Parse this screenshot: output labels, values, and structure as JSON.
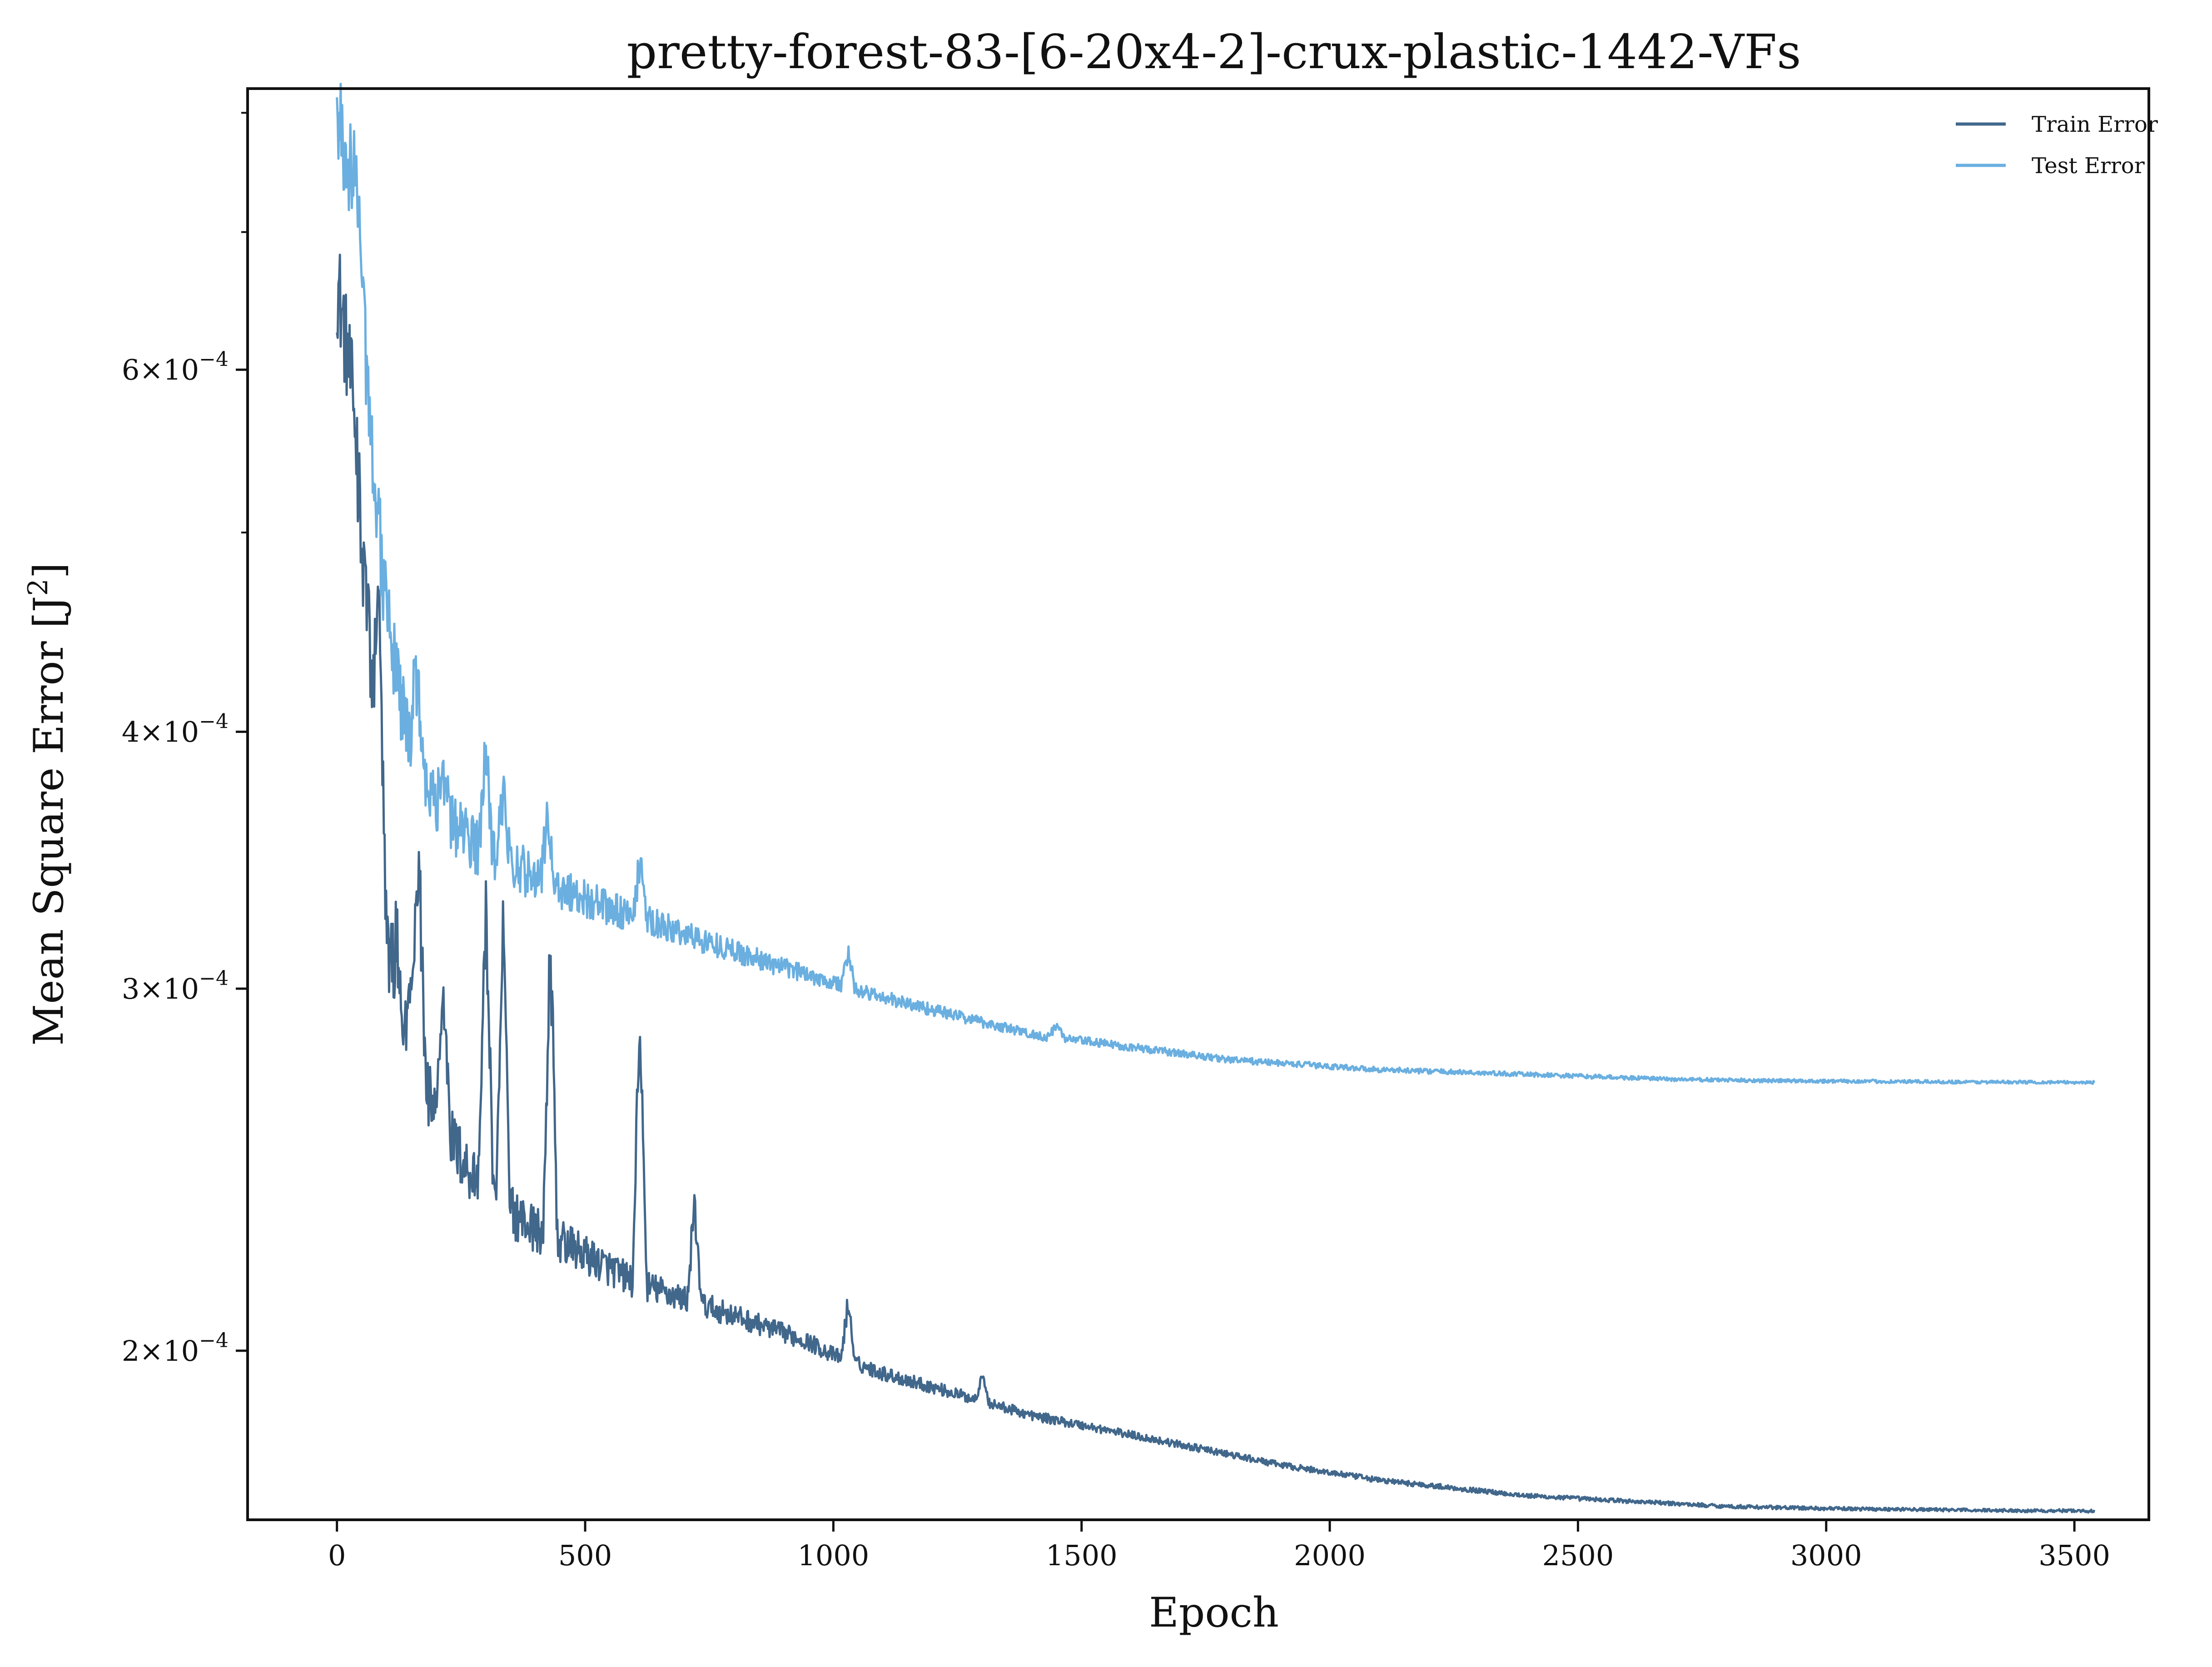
{
  "chart_data": {
    "type": "line",
    "title": "pretty-forest-83-[6-20x4-2]-crux-plastic-1442-VFs",
    "xlabel": "Epoch",
    "ylabel_base": "Mean Square Error [J",
    "ylabel_sup": "2",
    "ylabel_end": "]",
    "xlim": [
      -180,
      3650
    ],
    "ylim": [
      0.0001655,
      0.000822
    ],
    "yscale": "log",
    "grid": false,
    "legend_position": "top-right",
    "x_ticks": [
      {
        "value": 0,
        "label": "0"
      },
      {
        "value": 500,
        "label": "500"
      },
      {
        "value": 1000,
        "label": "1000"
      },
      {
        "value": 1500,
        "label": "1500"
      },
      {
        "value": 2000,
        "label": "2000"
      },
      {
        "value": 2500,
        "label": "2500"
      },
      {
        "value": 3000,
        "label": "3000"
      },
      {
        "value": 3500,
        "label": "3500"
      }
    ],
    "y_major_ticks": [
      {
        "value": 0.0002,
        "mantissa": "2",
        "exp": "−4"
      },
      {
        "value": 0.0003,
        "mantissa": "3",
        "exp": "−4"
      },
      {
        "value": 0.0004,
        "mantissa": "4",
        "exp": "−4"
      },
      {
        "value": 0.0006,
        "mantissa": "6",
        "exp": "−4"
      }
    ],
    "y_minor_ticks": [
      0.0005,
      0.0007,
      0.0008
    ],
    "series": [
      {
        "name": "Train Error",
        "color": "#41678b",
        "points": [
          [
            0,
            0.000665
          ],
          [
            10,
            0.00064
          ],
          [
            25,
            0.0006
          ],
          [
            40,
            0.00056
          ],
          [
            55,
            0.0005
          ],
          [
            70,
            0.00042
          ],
          [
            85,
            0.00036
          ],
          [
            100,
            0.00032
          ],
          [
            115,
            0.000295
          ],
          [
            125,
            0.000287
          ],
          [
            140,
            0.000282
          ],
          [
            155,
            0.000276
          ],
          [
            170,
            0.00027
          ],
          [
            185,
            0.000265
          ],
          [
            200,
            0.00026
          ],
          [
            220,
            0.000256
          ],
          [
            240,
            0.000251
          ],
          [
            260,
            0.000246
          ],
          [
            280,
            0.000243
          ],
          [
            300,
            0.00024
          ],
          [
            330,
            0.000236
          ],
          [
            360,
            0.000233
          ],
          [
            390,
            0.00023
          ],
          [
            420,
            0.000228
          ],
          [
            450,
            0.000226
          ],
          [
            480,
            0.000224
          ],
          [
            510,
            0.000222
          ],
          [
            540,
            0.00022
          ],
          [
            570,
            0.000218
          ],
          [
            600,
            0.000216
          ],
          [
            650,
            0.000214
          ],
          [
            700,
            0.000212
          ],
          [
            750,
            0.00021
          ],
          [
            800,
            0.000208
          ],
          [
            850,
            0.000206
          ],
          [
            900,
            0.000204
          ],
          [
            950,
            0.000202
          ],
          [
            1000,
            0.000199
          ],
          [
            1100,
            0.000195
          ],
          [
            1200,
            0.000192
          ],
          [
            1300,
            0.000189
          ],
          [
            1400,
            0.000186
          ],
          [
            1500,
            0.000184
          ],
          [
            1600,
            0.000182
          ],
          [
            1700,
            0.00018
          ],
          [
            1800,
            0.000178
          ],
          [
            1900,
            0.000176
          ],
          [
            2000,
            0.0001745
          ],
          [
            2100,
            0.000173
          ],
          [
            2200,
            0.000172
          ],
          [
            2300,
            0.000171
          ],
          [
            2400,
            0.00017
          ],
          [
            2500,
            0.0001695
          ],
          [
            2600,
            0.000169
          ],
          [
            2700,
            0.0001685
          ],
          [
            2800,
            0.000168
          ],
          [
            2900,
            0.0001678
          ],
          [
            3000,
            0.0001676
          ],
          [
            3100,
            0.0001675
          ],
          [
            3200,
            0.0001674
          ],
          [
            3300,
            0.0001673
          ],
          [
            3400,
            0.0001672
          ],
          [
            3500,
            0.0001672
          ],
          [
            3540,
            0.0001671
          ]
        ],
        "spikes": [
          [
            50,
            0.00048
          ],
          [
            85,
            0.00047
          ],
          [
            120,
            0.00032
          ],
          [
            150,
            0.000312
          ],
          [
            165,
            0.000358
          ],
          [
            215,
            0.000302
          ],
          [
            300,
            0.00034
          ],
          [
            335,
            0.000337
          ],
          [
            430,
            0.000325
          ],
          [
            610,
            0.000297
          ],
          [
            720,
            0.000238
          ],
          [
            1030,
            0.000213
          ],
          [
            1300,
            0.000196
          ]
        ]
      },
      {
        "name": "Test Error",
        "color": "#6aafe0",
        "points": [
          [
            0,
            0.00079
          ],
          [
            15,
            0.00077
          ],
          [
            30,
            0.00075
          ],
          [
            45,
            0.00073
          ],
          [
            60,
            0.00059
          ],
          [
            75,
            0.00054
          ],
          [
            90,
            0.00049
          ],
          [
            110,
            0.00044
          ],
          [
            130,
            0.00041
          ],
          [
            150,
            0.000395
          ],
          [
            170,
            0.000383
          ],
          [
            190,
            0.000374
          ],
          [
            210,
            0.000367
          ],
          [
            240,
            0.00036
          ],
          [
            270,
            0.000354
          ],
          [
            300,
            0.00035
          ],
          [
            330,
            0.000347
          ],
          [
            360,
            0.000344
          ],
          [
            400,
            0.00034
          ],
          [
            450,
            0.000336
          ],
          [
            500,
            0.000332
          ],
          [
            550,
            0.000328
          ],
          [
            600,
            0.000325
          ],
          [
            650,
            0.000322
          ],
          [
            700,
            0.000319
          ],
          [
            750,
            0.000316
          ],
          [
            800,
            0.000313
          ],
          [
            850,
            0.00031
          ],
          [
            900,
            0.000307
          ],
          [
            950,
            0.000305
          ],
          [
            1000,
            0.000302
          ],
          [
            1100,
            0.000297
          ],
          [
            1200,
            0.000293
          ],
          [
            1300,
            0.000289
          ],
          [
            1400,
            0.000285
          ],
          [
            1500,
            0.000283
          ],
          [
            1600,
            0.000281
          ],
          [
            1700,
            0.000279
          ],
          [
            1800,
            0.000277
          ],
          [
            1900,
            0.000276
          ],
          [
            2000,
            0.000275
          ],
          [
            2100,
            0.000274
          ],
          [
            2200,
            0.0002735
          ],
          [
            2300,
            0.000273
          ],
          [
            2400,
            0.0002725
          ],
          [
            2500,
            0.000272
          ],
          [
            2600,
            0.0002715
          ],
          [
            2700,
            0.000271
          ],
          [
            2800,
            0.0002708
          ],
          [
            2900,
            0.0002706
          ],
          [
            3000,
            0.0002705
          ],
          [
            3100,
            0.0002704
          ],
          [
            3200,
            0.0002703
          ],
          [
            3300,
            0.0002702
          ],
          [
            3400,
            0.0002702
          ],
          [
            3500,
            0.0002701
          ],
          [
            3540,
            0.0002701
          ]
        ],
        "spikes": [
          [
            60,
            0.0006
          ],
          [
            80,
            0.00052
          ],
          [
            95,
            0.00047
          ],
          [
            160,
            0.000437
          ],
          [
            215,
            0.00038
          ],
          [
            300,
            0.0004
          ],
          [
            335,
            0.00038
          ],
          [
            425,
            0.000368
          ],
          [
            610,
            0.00035
          ],
          [
            1030,
            0.000313
          ],
          [
            1450,
            0.000289
          ]
        ]
      }
    ]
  }
}
